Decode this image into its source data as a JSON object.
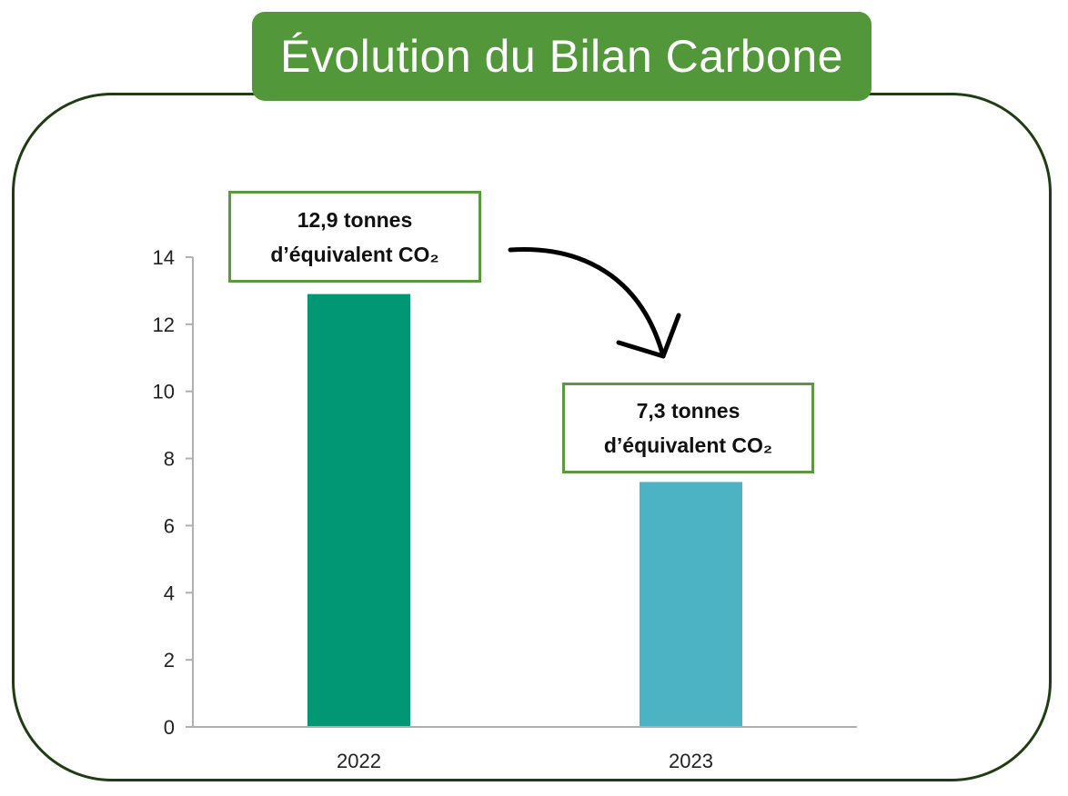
{
  "title": "Évolution du Bilan Carbone",
  "colors": {
    "banner": "#52983a",
    "frame_border": "#1f3d12",
    "callout_border": "#5a9a3e",
    "axis": "#b0b0b0"
  },
  "callouts": [
    {
      "line1": "12,9 tonnes",
      "line2": "d’équivalent CO₂"
    },
    {
      "line1": "7,3 tonnes",
      "line2": "d’équivalent CO₂"
    }
  ],
  "chart_data": {
    "type": "bar",
    "categories": [
      "2022",
      "2023"
    ],
    "values": [
      12.9,
      7.3
    ],
    "colors": [
      "#019674",
      "#4bb3c3"
    ],
    "title": "Évolution du Bilan Carbone",
    "xlabel": "",
    "ylabel": "",
    "ylim": [
      0,
      14
    ],
    "yticks": [
      0,
      2,
      4,
      6,
      8,
      10,
      12,
      14
    ],
    "grid": false,
    "legend": "none"
  }
}
